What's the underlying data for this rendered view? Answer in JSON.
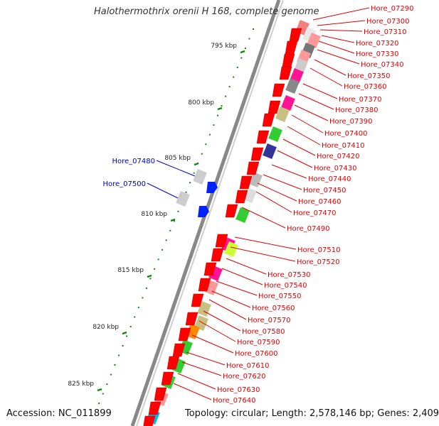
{
  "title": "Halothermothrix orenii H 168, complete genome",
  "footer": {
    "accession": "Accession: NC_011899",
    "summary": "Topology: circular; Length: 2,578,146 bp; Genes: 2,409"
  },
  "colors": {
    "backbone": "#888888",
    "forward_label": "#0000bb",
    "reverse_label": "#dd0000",
    "tick": "#0a8a0a",
    "dot": "#0a8a0a"
  },
  "scale_marks": [
    "795 kbp",
    "800 kbp",
    "805 kbp",
    "810 kbp",
    "815 kbp",
    "820 kbp",
    "825 kbp"
  ],
  "forward_genes": [
    "Hore_07480",
    "Hore_07500"
  ],
  "reverse_genes": [
    "Hore_07290",
    "Hore_07300",
    "Hore_07310",
    "Hore_07320",
    "Hore_07330",
    "Hore_07340",
    "Hore_07350",
    "Hore_07360",
    "Hore_07370",
    "Hore_07380",
    "Hore_07390",
    "Hore_07400",
    "Hore_07410",
    "Hore_07420",
    "Hore_07430",
    "Hore_07440",
    "Hore_07450",
    "Hore_07460",
    "Hore_07470",
    "Hore_07490",
    "Hore_07510",
    "Hore_07520",
    "Hore_07530",
    "Hore_07540",
    "Hore_07550",
    "Hore_07560",
    "Hore_07570",
    "Hore_07580",
    "Hore_07590",
    "Hore_07600",
    "Hore_07610",
    "Hore_07620",
    "Hore_07630",
    "Hore_07640"
  ]
}
